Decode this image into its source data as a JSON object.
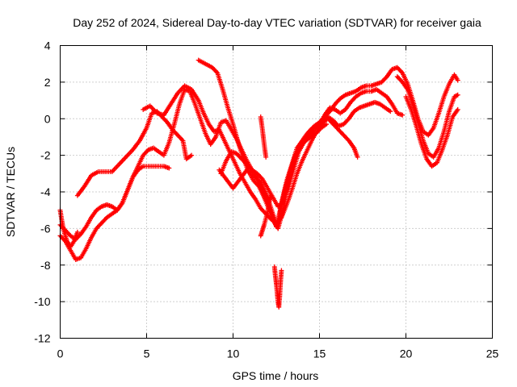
{
  "chart_data": {
    "type": "scatter",
    "title": "Day 252 of 2024, Sidereal Day-to-day VTEC variation (SDTVAR) for receiver gaia",
    "xlabel": "GPS time / hours",
    "ylabel": "SDTVAR / TECUs",
    "xlim": [
      0,
      25
    ],
    "ylim": [
      -12,
      4
    ],
    "x_ticks": [
      0,
      5,
      10,
      15,
      20,
      25
    ],
    "x_tick_labels": [
      "0",
      "5",
      "10",
      "15",
      "20",
      "25"
    ],
    "y_ticks": [
      -12,
      -10,
      -8,
      -6,
      -4,
      -2,
      0,
      2,
      4
    ],
    "y_tick_labels": [
      "-12",
      "-10",
      "-8",
      "-6",
      "-4",
      "-2",
      "0",
      "2",
      "4"
    ],
    "grid": true,
    "marker": "+",
    "color": "#ff0000",
    "series": [
      {
        "name": "trace-1",
        "points": [
          [
            0.0,
            -5.8
          ],
          [
            0.3,
            -6.1
          ],
          [
            0.6,
            -6.4
          ],
          [
            0.9,
            -6.6
          ],
          [
            1.2,
            -6.3
          ],
          [
            1.5,
            -5.9
          ],
          [
            1.8,
            -5.4
          ],
          [
            2.1,
            -5.0
          ],
          [
            2.4,
            -4.8
          ],
          [
            2.7,
            -4.7
          ],
          [
            3.0,
            -4.8
          ],
          [
            3.3,
            -5.0
          ],
          [
            3.6,
            -4.6
          ],
          [
            3.9,
            -3.9
          ],
          [
            4.2,
            -3.2
          ],
          [
            4.5,
            -2.6
          ],
          [
            4.8,
            -2.0
          ],
          [
            5.1,
            -1.7
          ],
          [
            5.4,
            -1.6
          ],
          [
            5.7,
            -1.8
          ],
          [
            6.0,
            -2.0
          ],
          [
            6.3,
            -1.3
          ],
          [
            6.6,
            -0.3
          ],
          [
            6.9,
            0.8
          ],
          [
            7.2,
            1.6
          ],
          [
            7.5,
            1.5
          ],
          [
            7.8,
            0.8
          ],
          [
            8.1,
            0.0
          ],
          [
            8.4,
            -0.8
          ],
          [
            8.7,
            -1.4
          ],
          [
            9.0,
            -1.0
          ],
          [
            9.3,
            -0.2
          ],
          [
            9.6,
            -0.1
          ],
          [
            9.9,
            -0.6
          ],
          [
            10.2,
            -1.1
          ],
          [
            10.5,
            -1.7
          ],
          [
            10.8,
            -2.3
          ],
          [
            11.1,
            -2.8
          ],
          [
            11.4,
            -3.0
          ],
          [
            11.7,
            -3.3
          ],
          [
            12.0,
            -3.8
          ],
          [
            12.3,
            -4.3
          ],
          [
            12.6,
            -4.8
          ],
          [
            12.9,
            -4.6
          ],
          [
            13.2,
            -3.8
          ],
          [
            13.5,
            -2.8
          ],
          [
            13.8,
            -1.8
          ],
          [
            14.1,
            -1.3
          ],
          [
            14.4,
            -1.0
          ],
          [
            14.7,
            -0.6
          ],
          [
            15.0,
            -0.3
          ],
          [
            15.3,
            0.2
          ],
          [
            15.6,
            0.6
          ],
          [
            15.9,
            0.5
          ],
          [
            16.2,
            0.3
          ],
          [
            16.5,
            0.5
          ],
          [
            16.8,
            0.9
          ],
          [
            17.1,
            1.2
          ],
          [
            17.4,
            1.4
          ],
          [
            17.7,
            1.5
          ],
          [
            18.0,
            1.5
          ],
          [
            18.3,
            1.6
          ],
          [
            18.6,
            1.4
          ],
          [
            18.9,
            1.2
          ],
          [
            19.2,
            0.8
          ],
          [
            19.5,
            0.3
          ],
          [
            19.8,
            0.2
          ]
        ]
      },
      {
        "name": "trace-2",
        "points": [
          [
            0.0,
            -6.4
          ],
          [
            0.3,
            -6.7
          ],
          [
            0.6,
            -7.2
          ],
          [
            0.9,
            -7.7
          ],
          [
            1.2,
            -7.6
          ],
          [
            1.5,
            -7.1
          ],
          [
            1.8,
            -6.5
          ],
          [
            2.1,
            -6.0
          ],
          [
            2.4,
            -5.7
          ],
          [
            2.7,
            -5.4
          ],
          [
            3.0,
            -5.2
          ],
          [
            3.3,
            -5.0
          ],
          [
            3.6,
            -4.6
          ],
          [
            3.9,
            -3.9
          ],
          [
            4.2,
            -3.2
          ],
          [
            4.5,
            -2.8
          ],
          [
            4.8,
            -2.6
          ],
          [
            5.1,
            -2.6
          ],
          [
            5.4,
            -2.6
          ],
          [
            5.7,
            -2.6
          ],
          [
            6.0,
            -2.6
          ],
          [
            6.3,
            -2.7
          ]
        ]
      },
      {
        "name": "trace-3",
        "points": [
          [
            1.0,
            -4.2
          ],
          [
            1.4,
            -3.7
          ],
          [
            1.8,
            -3.1
          ],
          [
            2.2,
            -2.9
          ],
          [
            2.6,
            -2.9
          ],
          [
            3.0,
            -2.9
          ],
          [
            3.4,
            -2.5
          ],
          [
            3.8,
            -2.1
          ],
          [
            4.2,
            -1.7
          ],
          [
            4.6,
            -1.2
          ],
          [
            5.0,
            -0.5
          ],
          [
            5.3,
            0.3
          ],
          [
            5.6,
            0.4
          ],
          [
            5.9,
            0.1
          ],
          [
            6.2,
            -0.2
          ],
          [
            6.5,
            -0.6
          ],
          [
            6.8,
            -0.9
          ],
          [
            7.1,
            -1.2
          ],
          [
            7.3,
            -2.2
          ],
          [
            7.6,
            -2.0
          ]
        ]
      },
      {
        "name": "trace-4",
        "points": [
          [
            4.8,
            0.5
          ],
          [
            5.2,
            0.7
          ],
          [
            5.6,
            0.3
          ],
          [
            6.0,
            0.2
          ],
          [
            6.4,
            0.8
          ],
          [
            6.8,
            1.4
          ],
          [
            7.2,
            1.8
          ],
          [
            7.6,
            1.6
          ],
          [
            8.0,
            1.0
          ],
          [
            8.3,
            0.3
          ],
          [
            8.6,
            -0.3
          ],
          [
            8.9,
            -0.7
          ],
          [
            9.2,
            -0.6
          ],
          [
            9.5,
            -1.2
          ],
          [
            9.8,
            -1.8
          ],
          [
            10.1,
            -2.4
          ],
          [
            10.4,
            -3.0
          ],
          [
            10.7,
            -3.5
          ],
          [
            11.0,
            -4.0
          ],
          [
            11.3,
            -4.4
          ],
          [
            11.6,
            -4.9
          ],
          [
            11.9,
            -5.2
          ],
          [
            12.2,
            -5.5
          ],
          [
            12.5,
            -5.7
          ],
          [
            12.8,
            -5.4
          ],
          [
            13.1,
            -4.7
          ],
          [
            13.4,
            -3.9
          ],
          [
            13.7,
            -3.0
          ],
          [
            14.0,
            -2.3
          ],
          [
            14.3,
            -1.7
          ],
          [
            14.6,
            -1.1
          ],
          [
            14.9,
            -0.6
          ],
          [
            15.2,
            -0.2
          ],
          [
            15.5,
            0.1
          ],
          [
            15.8,
            -0.1
          ],
          [
            16.1,
            -0.4
          ],
          [
            16.4,
            -0.3
          ],
          [
            16.7,
            0.0
          ],
          [
            17.0,
            0.4
          ],
          [
            17.3,
            0.6
          ],
          [
            17.6,
            0.7
          ],
          [
            17.9,
            0.8
          ],
          [
            18.2,
            0.9
          ],
          [
            18.5,
            0.8
          ],
          [
            18.8,
            0.6
          ],
          [
            19.1,
            0.4
          ]
        ]
      },
      {
        "name": "trace-5",
        "points": [
          [
            8.0,
            3.2
          ],
          [
            8.4,
            3.0
          ],
          [
            8.8,
            2.8
          ],
          [
            9.1,
            2.5
          ],
          [
            9.4,
            1.6
          ],
          [
            9.7,
            0.6
          ],
          [
            10.0,
            -0.3
          ],
          [
            10.3,
            -1.3
          ],
          [
            10.6,
            -2.2
          ],
          [
            10.9,
            -2.9
          ],
          [
            11.2,
            -3.4
          ],
          [
            11.5,
            -3.7
          ],
          [
            11.8,
            -4.3
          ],
          [
            12.1,
            -5.0
          ],
          [
            12.4,
            -5.7
          ],
          [
            12.6,
            -6.0
          ],
          [
            12.8,
            -4.6
          ],
          [
            13.1,
            -3.4
          ],
          [
            13.4,
            -2.5
          ],
          [
            13.7,
            -1.6
          ],
          [
            14.0,
            -1.2
          ],
          [
            14.3,
            -0.8
          ],
          [
            14.6,
            -0.5
          ],
          [
            14.9,
            -0.3
          ],
          [
            15.2,
            -0.1
          ],
          [
            15.5,
            0.0
          ],
          [
            15.8,
            -0.3
          ],
          [
            16.1,
            -0.6
          ],
          [
            16.4,
            -0.9
          ],
          [
            16.7,
            -1.2
          ],
          [
            17.0,
            -1.6
          ],
          [
            17.2,
            -2.1
          ]
        ]
      },
      {
        "name": "trace-6",
        "points": [
          [
            9.3,
            -3.0
          ],
          [
            9.6,
            -2.3
          ],
          [
            9.9,
            -1.8
          ],
          [
            10.2,
            -1.9
          ],
          [
            10.5,
            -2.2
          ],
          [
            10.8,
            -2.5
          ],
          [
            11.1,
            -2.8
          ],
          [
            11.4,
            -3.3
          ],
          [
            11.7,
            -4.0
          ],
          [
            12.0,
            -4.6
          ],
          [
            12.3,
            -5.3
          ],
          [
            12.5,
            -5.9
          ],
          [
            12.7,
            -5.1
          ],
          [
            13.0,
            -3.9
          ],
          [
            13.3,
            -2.9
          ],
          [
            13.6,
            -2.0
          ],
          [
            13.9,
            -1.5
          ],
          [
            14.2,
            -1.2
          ],
          [
            14.5,
            -1.0
          ],
          [
            14.8,
            -0.8
          ],
          [
            15.1,
            -0.5
          ],
          [
            15.4,
            -0.3
          ]
        ]
      },
      {
        "name": "trace-7",
        "points": [
          [
            9.2,
            -2.8
          ],
          [
            9.6,
            -3.3
          ],
          [
            10.0,
            -3.8
          ],
          [
            10.4,
            -3.3
          ],
          [
            10.8,
            -2.8
          ],
          [
            11.2,
            -3.1
          ],
          [
            11.6,
            -3.5
          ],
          [
            12.0,
            -4.3
          ],
          [
            12.3,
            -5.2
          ],
          [
            12.6,
            -6.0
          ],
          [
            12.9,
            -5.0
          ],
          [
            13.2,
            -3.5
          ],
          [
            13.5,
            -2.4
          ],
          [
            13.8,
            -1.7
          ],
          [
            14.1,
            -1.1
          ],
          [
            14.4,
            -0.7
          ],
          [
            14.7,
            -0.4
          ],
          [
            15.0,
            -0.2
          ],
          [
            15.3,
            0.1
          ],
          [
            15.6,
            0.4
          ],
          [
            15.9,
            0.8
          ],
          [
            16.2,
            1.1
          ],
          [
            16.5,
            1.3
          ],
          [
            16.8,
            1.4
          ],
          [
            17.1,
            1.5
          ],
          [
            17.4,
            1.7
          ],
          [
            17.7,
            1.8
          ],
          [
            18.0,
            1.8
          ],
          [
            18.3,
            1.9
          ],
          [
            18.6,
            2.0
          ],
          [
            18.9,
            2.3
          ],
          [
            19.2,
            2.7
          ],
          [
            19.5,
            2.8
          ],
          [
            19.8,
            2.5
          ],
          [
            20.1,
            1.9
          ],
          [
            20.4,
            1.0
          ],
          [
            20.7,
            0.0
          ],
          [
            21.0,
            -0.7
          ],
          [
            21.3,
            -0.9
          ],
          [
            21.6,
            -0.5
          ],
          [
            21.9,
            0.3
          ],
          [
            22.2,
            1.2
          ],
          [
            22.5,
            1.9
          ],
          [
            22.8,
            2.4
          ],
          [
            23.0,
            2.1
          ]
        ]
      },
      {
        "name": "trace-8",
        "points": [
          [
            19.5,
            2.3
          ],
          [
            19.8,
            2.0
          ],
          [
            20.1,
            1.6
          ],
          [
            20.4,
            0.8
          ],
          [
            20.7,
            -0.2
          ],
          [
            21.0,
            -1.2
          ],
          [
            21.3,
            -1.9
          ],
          [
            21.6,
            -2.1
          ],
          [
            21.9,
            -1.6
          ],
          [
            22.2,
            -0.7
          ],
          [
            22.5,
            0.4
          ],
          [
            22.8,
            1.2
          ],
          [
            23.0,
            1.3
          ]
        ]
      },
      {
        "name": "trace-9",
        "points": [
          [
            20.0,
            1.2
          ],
          [
            20.3,
            0.5
          ],
          [
            20.6,
            -0.4
          ],
          [
            20.9,
            -1.4
          ],
          [
            21.2,
            -2.2
          ],
          [
            21.5,
            -2.6
          ],
          [
            21.8,
            -2.4
          ],
          [
            22.1,
            -1.7
          ],
          [
            22.4,
            -0.9
          ],
          [
            22.7,
            0.1
          ],
          [
            23.0,
            0.5
          ]
        ]
      },
      {
        "name": "trace-10",
        "points": [
          [
            11.6,
            -6.4
          ],
          [
            11.7,
            -6.1
          ],
          [
            11.8,
            -5.8
          ],
          [
            12.0,
            -5.1
          ],
          [
            12.1,
            -4.5
          ],
          [
            12.2,
            -4.2
          ]
        ]
      },
      {
        "name": "trace-11",
        "points": [
          [
            12.4,
            -8.1
          ],
          [
            12.45,
            -8.6
          ],
          [
            12.5,
            -9.0
          ],
          [
            12.55,
            -9.5
          ],
          [
            12.6,
            -10.0
          ],
          [
            12.65,
            -10.3
          ],
          [
            12.7,
            -9.7
          ],
          [
            12.75,
            -8.9
          ],
          [
            12.8,
            -8.3
          ]
        ]
      },
      {
        "name": "trace-12",
        "points": [
          [
            11.6,
            0.1
          ],
          [
            11.7,
            -0.6
          ],
          [
            11.8,
            -1.4
          ],
          [
            11.9,
            -2.1
          ]
        ]
      },
      {
        "name": "trace-13",
        "points": [
          [
            0.0,
            -5.0
          ],
          [
            0.1,
            -5.6
          ],
          [
            0.2,
            -6.1
          ],
          [
            0.4,
            -6.7
          ],
          [
            0.6,
            -7.0
          ],
          [
            0.8,
            -6.7
          ],
          [
            1.0,
            -6.2
          ]
        ]
      }
    ]
  }
}
